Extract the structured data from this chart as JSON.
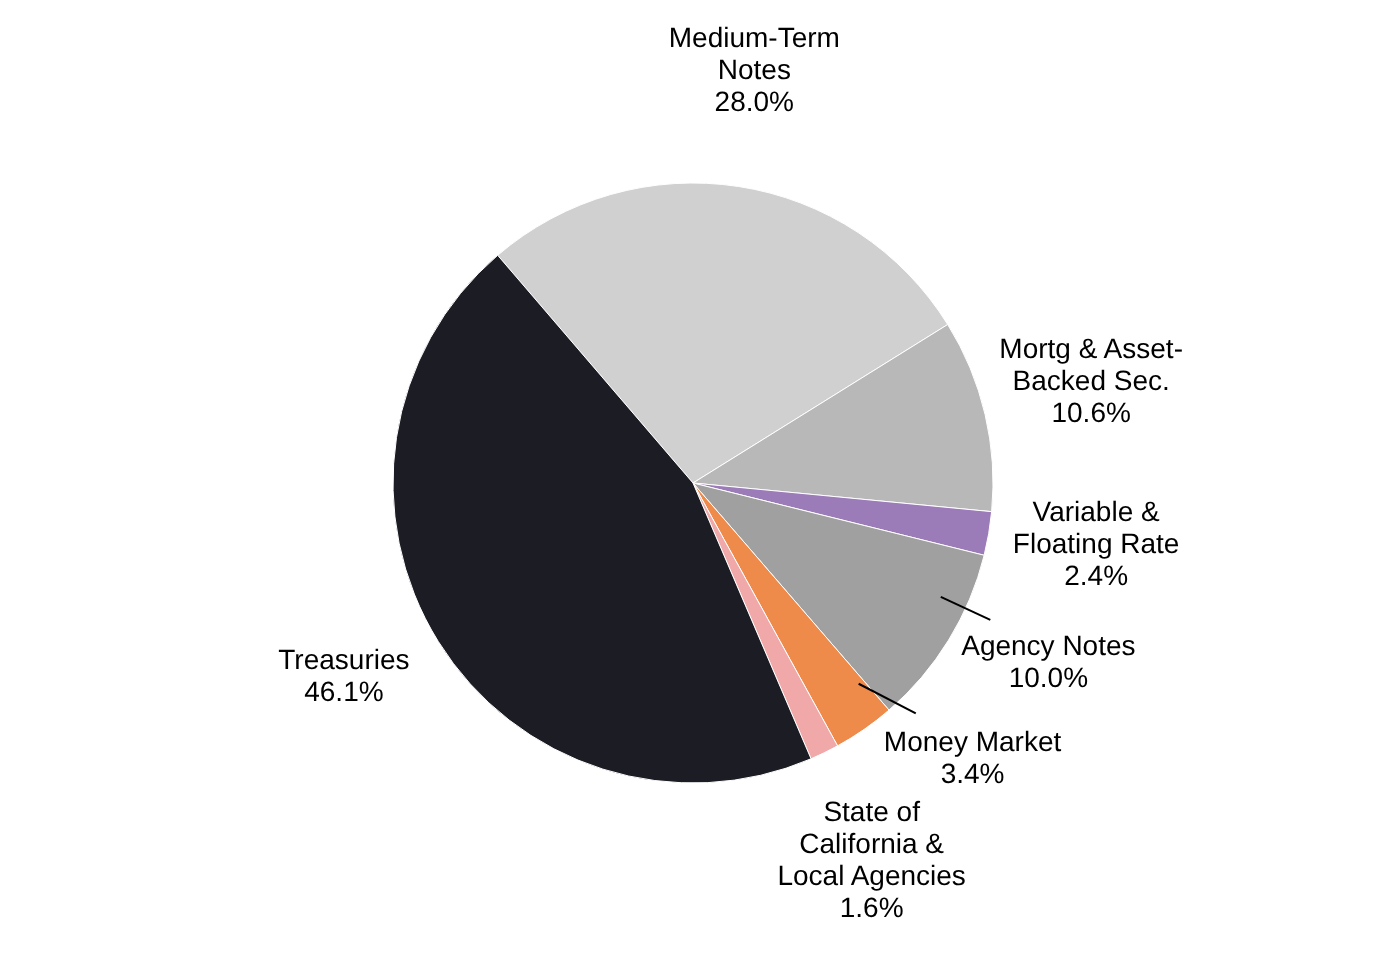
{
  "chart_data": {
    "type": "pie",
    "categories": [
      "Medium-Term Notes",
      "Mortg & Asset-Backed Sec.",
      "Variable & Floating Rate",
      "Agency Notes",
      "Money Market",
      "State of California & Local Agencies",
      "Treasuries"
    ],
    "values": [
      28.0,
      10.6,
      2.4,
      10.0,
      3.4,
      1.6,
      46.1
    ],
    "value_labels": [
      "28.0%",
      "10.6%",
      "2.4%",
      "10.0%",
      "3.4%",
      "1.6%",
      "46.1%"
    ],
    "colors": [
      "#d0d0d0",
      "#b8b8b8",
      "#9b7bb8",
      "#a0a0a0",
      "#ee8a4a",
      "#f0a8a8",
      "#1c1c24"
    ]
  }
}
